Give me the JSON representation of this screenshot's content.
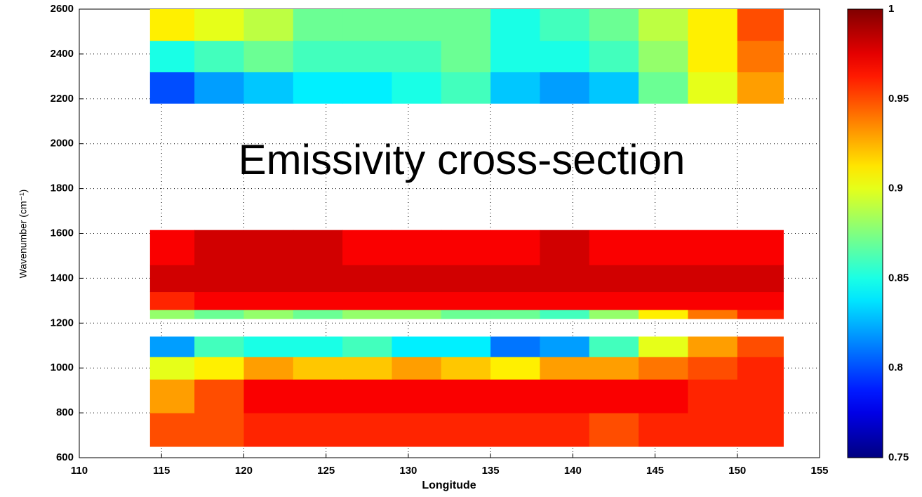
{
  "chart_data": {
    "type": "heatmap",
    "title": "Emissivity cross-section",
    "xlabel": "Longitude",
    "ylabel": "Wavenumber (cm⁻¹)",
    "xlim": [
      110,
      155
    ],
    "xticks": [
      110,
      115,
      120,
      125,
      130,
      135,
      140,
      145,
      150,
      155
    ],
    "ylim": [
      600,
      2600
    ],
    "yticks": [
      600,
      800,
      1000,
      1200,
      1400,
      1600,
      1800,
      2000,
      2200,
      2400,
      2600
    ],
    "grid": true,
    "colormap": "jet",
    "clim": [
      0.75,
      1
    ],
    "cticks": [
      0.75,
      0.8,
      0.85,
      0.9,
      0.95,
      1
    ],
    "x_edges": [
      114.3,
      117,
      120,
      123,
      126,
      129,
      132,
      135,
      138,
      141,
      144,
      147,
      150,
      152.8
    ],
    "bands": [
      {
        "y_edges": [
          2180,
          2320,
          2460,
          2600
        ],
        "values": [
          [
            0.8,
            0.82,
            0.83,
            0.84,
            0.84,
            0.85,
            0.86,
            0.83,
            0.82,
            0.83,
            0.87,
            0.9,
            0.93
          ],
          [
            0.85,
            0.86,
            0.87,
            0.86,
            0.86,
            0.86,
            0.87,
            0.85,
            0.85,
            0.86,
            0.88,
            0.91,
            0.94
          ],
          [
            0.91,
            0.9,
            0.89,
            0.87,
            0.87,
            0.87,
            0.87,
            0.85,
            0.86,
            0.87,
            0.89,
            0.91,
            0.95
          ]
        ]
      },
      {
        "y_edges": [
          1220,
          1260,
          1340,
          1460,
          1615
        ],
        "values": [
          [
            0.88,
            0.87,
            0.88,
            0.87,
            0.88,
            0.88,
            0.87,
            0.87,
            0.86,
            0.88,
            0.91,
            0.94,
            0.96
          ],
          [
            0.96,
            0.97,
            0.97,
            0.97,
            0.97,
            0.97,
            0.97,
            0.97,
            0.97,
            0.97,
            0.97,
            0.97,
            0.97
          ],
          [
            0.98,
            0.98,
            0.98,
            0.98,
            0.98,
            0.98,
            0.98,
            0.98,
            0.98,
            0.98,
            0.98,
            0.98,
            0.98
          ],
          [
            0.97,
            0.98,
            0.98,
            0.98,
            0.97,
            0.97,
            0.97,
            0.97,
            0.98,
            0.97,
            0.97,
            0.97,
            0.97
          ]
        ]
      },
      {
        "y_edges": [
          650,
          800,
          950,
          1050,
          1140
        ],
        "values": [
          [
            0.95,
            0.95,
            0.96,
            0.96,
            0.96,
            0.96,
            0.96,
            0.96,
            0.96,
            0.95,
            0.96,
            0.96,
            0.96
          ],
          [
            0.93,
            0.95,
            0.97,
            0.97,
            0.97,
            0.97,
            0.97,
            0.97,
            0.97,
            0.97,
            0.97,
            0.96,
            0.96
          ],
          [
            0.9,
            0.91,
            0.93,
            0.92,
            0.92,
            0.93,
            0.92,
            0.91,
            0.93,
            0.93,
            0.94,
            0.95,
            0.96
          ],
          [
            0.82,
            0.86,
            0.85,
            0.85,
            0.86,
            0.84,
            0.84,
            0.81,
            0.82,
            0.86,
            0.9,
            0.93,
            0.95
          ]
        ]
      }
    ]
  }
}
